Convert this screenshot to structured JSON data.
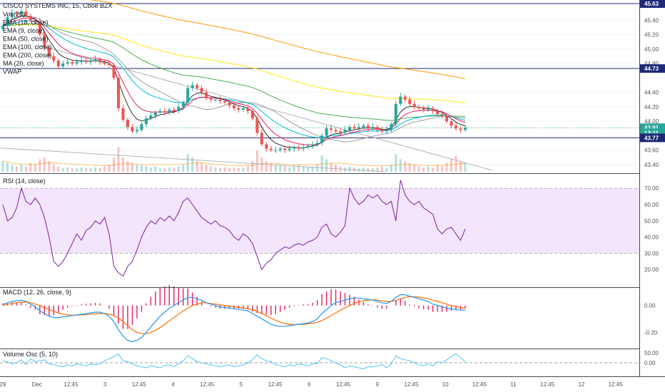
{
  "chart_data": [
    {
      "type": "candlestick",
      "panel": "price",
      "title": "CISCO SYSTEMS INC, 15, Cboe BZX",
      "legend": [
        "Vol (20)",
        "EMA (18, close)",
        "EMA (9, close)",
        "EMA (50, close)",
        "EMA (100, close)",
        "EMA (200, close)",
        "MA (20, close)",
        "VWAP"
      ],
      "ylim": [
        43.3,
        45.66
      ],
      "y_ticks": [
        "45.40",
        "45.20",
        "45.00",
        "44.80",
        "44.40",
        "44.20",
        "44.00",
        "43.60",
        "43.40"
      ],
      "price_tags": [
        {
          "value": "45.63",
          "y": 45.63,
          "color": "#1e2a78"
        },
        {
          "value": "44.73",
          "y": 44.73,
          "color": "#1e2a78"
        },
        {
          "value": "43.91",
          "y": 43.91,
          "color": "#26a69a"
        },
        {
          "value": "13:11",
          "y": 43.84,
          "color": "#26a69a"
        },
        {
          "value": "43.77",
          "y": 43.77,
          "color": "#1e2a78"
        }
      ],
      "horizontal_lines": [
        45.63,
        44.73,
        43.77
      ],
      "close_series": [
        45.32,
        45.44,
        45.5,
        45.48,
        45.52,
        45.46,
        45.4,
        45.38,
        45.2,
        45.02,
        44.9,
        44.84,
        44.76,
        44.8,
        44.82,
        44.8,
        44.82,
        44.84,
        44.82,
        44.84,
        44.86,
        44.82,
        44.8,
        44.78,
        44.6,
        44.18,
        44.02,
        43.92,
        43.86,
        43.88,
        43.96,
        44.04,
        44.08,
        44.12,
        44.14,
        44.12,
        44.16,
        44.14,
        44.2,
        44.26,
        44.46,
        44.5,
        44.46,
        44.4,
        44.32,
        44.3,
        44.3,
        44.28,
        44.26,
        44.22,
        44.18,
        44.16,
        44.18,
        44.14,
        44.04,
        43.84,
        43.68,
        43.62,
        43.6,
        43.6,
        43.62,
        43.6,
        43.62,
        43.64,
        43.62,
        43.64,
        43.66,
        43.68,
        43.7,
        43.8,
        43.9,
        43.88,
        43.86,
        43.84,
        43.88,
        43.92,
        43.9,
        43.92,
        43.94,
        43.9,
        43.92,
        43.88,
        43.86,
        43.88,
        43.96,
        44.24,
        44.34,
        44.3,
        44.24,
        44.2,
        44.18,
        44.16,
        44.18,
        44.14,
        44.1,
        44.08,
        44.0,
        43.94,
        43.9,
        43.88,
        43.91
      ],
      "volume_relative": [
        0.3,
        0.25,
        0.2,
        0.15,
        0.2,
        0.15,
        0.25,
        0.2,
        0.35,
        0.4,
        0.3,
        0.2,
        0.15,
        0.1,
        0.12,
        0.1,
        0.1,
        0.12,
        0.1,
        0.1,
        0.12,
        0.1,
        0.15,
        0.2,
        0.4,
        0.7,
        0.4,
        0.3,
        0.25,
        0.2,
        0.18,
        0.15,
        0.12,
        0.15,
        0.1,
        0.1,
        0.12,
        0.1,
        0.15,
        0.2,
        0.5,
        0.4,
        0.3,
        0.25,
        0.2,
        0.15,
        0.12,
        0.1,
        0.12,
        0.1,
        0.12,
        0.1,
        0.12,
        0.15,
        0.3,
        0.6,
        0.4,
        0.3,
        0.25,
        0.2,
        0.18,
        0.15,
        0.12,
        0.15,
        0.2,
        0.15,
        0.12,
        0.15,
        0.2,
        0.45,
        0.35,
        0.25,
        0.2,
        0.15,
        0.12,
        0.15,
        0.12,
        0.1,
        0.12,
        0.1,
        0.1,
        0.12,
        0.15,
        0.1,
        0.2,
        0.5,
        0.35,
        0.3,
        0.25,
        0.2,
        0.15,
        0.12,
        0.15,
        0.12,
        0.2,
        0.15,
        0.25,
        0.35,
        0.45,
        0.3,
        0.25
      ],
      "colors": {
        "up": "#26a69a",
        "down": "#ef5350",
        "ema9": "#000000",
        "ema18": "#e91e63",
        "ema50": "#00bcd4",
        "ema100": "#4caf50",
        "ema200": "#ffeb3b",
        "ma20": "#ff9800",
        "vwap": "#9e9e9e"
      }
    },
    {
      "type": "line",
      "panel": "rsi",
      "title": "RSI (14, close)",
      "ylim": [
        10,
        78
      ],
      "y_ticks": [
        "70.00",
        "60.00",
        "50.00",
        "40.00",
        "30.00",
        "20.00"
      ],
      "band": [
        30,
        70
      ],
      "values": [
        60,
        50,
        52,
        58,
        70,
        62,
        60,
        64,
        60,
        52,
        40,
        25,
        22,
        25,
        30,
        36,
        42,
        38,
        44,
        46,
        50,
        48,
        52,
        42,
        22,
        18,
        16,
        22,
        25,
        32,
        40,
        46,
        50,
        48,
        52,
        50,
        53,
        50,
        55,
        62,
        64,
        60,
        56,
        52,
        50,
        48,
        50,
        47,
        46,
        44,
        40,
        38,
        42,
        40,
        36,
        28,
        20,
        24,
        26,
        30,
        32,
        34,
        33,
        35,
        36,
        35,
        37,
        38,
        40,
        46,
        48,
        42,
        40,
        43,
        47,
        70,
        64,
        60,
        62,
        66,
        64,
        66,
        62,
        60,
        62,
        50,
        75,
        66,
        62,
        60,
        62,
        58,
        56,
        54,
        45,
        42,
        45,
        46,
        42,
        38,
        45
      ],
      "color": "#7b1fa2"
    },
    {
      "type": "line",
      "panel": "macd",
      "title": "MACD (12, 26, close, 9)",
      "ylim": [
        -0.31,
        0.12
      ],
      "y_ticks": [
        "0.00",
        "-0.20"
      ],
      "macd": [
        0.01,
        0.02,
        0.03,
        0.035,
        0.04,
        0.03,
        0.01,
        -0.01,
        -0.04,
        -0.06,
        -0.08,
        -0.09,
        -0.09,
        -0.085,
        -0.08,
        -0.075,
        -0.07,
        -0.065,
        -0.06,
        -0.055,
        -0.05,
        -0.05,
        -0.06,
        -0.08,
        -0.12,
        -0.18,
        -0.23,
        -0.26,
        -0.27,
        -0.26,
        -0.24,
        -0.2,
        -0.16,
        -0.12,
        -0.08,
        -0.05,
        -0.02,
        0.0,
        0.02,
        0.04,
        0.06,
        0.06,
        0.05,
        0.04,
        0.02,
        0.01,
        0.0,
        -0.01,
        -0.015,
        -0.02,
        -0.025,
        -0.03,
        -0.035,
        -0.04,
        -0.06,
        -0.08,
        -0.1,
        -0.12,
        -0.14,
        -0.15,
        -0.155,
        -0.155,
        -0.15,
        -0.145,
        -0.14,
        -0.135,
        -0.13,
        -0.12,
        -0.1,
        -0.06,
        -0.03,
        0.0,
        0.02,
        0.03,
        0.04,
        0.05,
        0.055,
        0.055,
        0.05,
        0.045,
        0.04,
        0.03,
        0.02,
        0.015,
        0.03,
        0.06,
        0.08,
        0.08,
        0.07,
        0.06,
        0.05,
        0.04,
        0.03,
        0.01,
        0.0,
        -0.01,
        -0.02,
        -0.025,
        -0.03,
        -0.035,
        -0.035
      ],
      "signal": [
        0.0,
        0.01,
        0.015,
        0.02,
        0.025,
        0.025,
        0.02,
        0.01,
        0.0,
        -0.015,
        -0.03,
        -0.045,
        -0.055,
        -0.065,
        -0.07,
        -0.072,
        -0.072,
        -0.07,
        -0.068,
        -0.065,
        -0.062,
        -0.06,
        -0.06,
        -0.065,
        -0.075,
        -0.095,
        -0.12,
        -0.15,
        -0.18,
        -0.2,
        -0.21,
        -0.21,
        -0.2,
        -0.185,
        -0.165,
        -0.14,
        -0.115,
        -0.09,
        -0.065,
        -0.04,
        -0.02,
        0.0,
        0.01,
        0.02,
        0.02,
        0.015,
        0.01,
        0.005,
        0.0,
        -0.005,
        -0.01,
        -0.015,
        -0.02,
        -0.025,
        -0.032,
        -0.045,
        -0.06,
        -0.077,
        -0.095,
        -0.11,
        -0.125,
        -0.135,
        -0.14,
        -0.142,
        -0.142,
        -0.14,
        -0.137,
        -0.132,
        -0.125,
        -0.112,
        -0.095,
        -0.075,
        -0.055,
        -0.035,
        -0.018,
        0.0,
        0.015,
        0.027,
        0.035,
        0.04,
        0.042,
        0.04,
        0.035,
        0.03,
        0.03,
        0.038,
        0.05,
        0.06,
        0.065,
        0.065,
        0.062,
        0.057,
        0.05,
        0.04,
        0.03,
        0.02,
        0.01,
        0.0,
        -0.008,
        -0.015,
        -0.022
      ],
      "colors": {
        "macd": "#2196f3",
        "signal": "#ff6d00",
        "hist": "#e91e63"
      }
    },
    {
      "type": "line",
      "panel": "volume_osc",
      "title": "Volume Osc (5, 10)",
      "ylim": [
        -60,
        60
      ],
      "y_ticks": [
        "50.00",
        "0.00"
      ],
      "values": [
        10,
        5,
        -5,
        0,
        15,
        -10,
        20,
        5,
        10,
        15,
        -5,
        -10,
        -15,
        -20,
        -10,
        -15,
        -5,
        -10,
        -15,
        -5,
        -10,
        -5,
        10,
        20,
        30,
        45,
        10,
        5,
        -5,
        -15,
        -20,
        -25,
        -15,
        -20,
        -25,
        -15,
        -10,
        -20,
        -5,
        10,
        35,
        20,
        5,
        0,
        -5,
        -10,
        -15,
        -20,
        -15,
        -10,
        -20,
        -15,
        -10,
        0,
        15,
        40,
        20,
        10,
        5,
        -10,
        -15,
        -20,
        -10,
        -15,
        -5,
        -10,
        -15,
        -5,
        -5,
        25,
        20,
        10,
        0,
        -10,
        -25,
        -15,
        -20,
        -25,
        -30,
        -20,
        -20,
        -15,
        -10,
        -25,
        -5,
        35,
        20,
        15,
        10,
        0,
        -10,
        -15,
        -5,
        -15,
        5,
        0,
        15,
        30,
        45,
        25,
        5
      ],
      "color": "#4fc3f7"
    }
  ],
  "x_axis": {
    "labels": [
      "29",
      "Dec",
      "12:45",
      "3",
      "12:45",
      "4",
      "12:45",
      "5",
      "12:45",
      "6",
      "12:45",
      "9",
      "12:45",
      "10",
      "12:45",
      "11",
      "12:45",
      "12",
      "12:45"
    ]
  }
}
